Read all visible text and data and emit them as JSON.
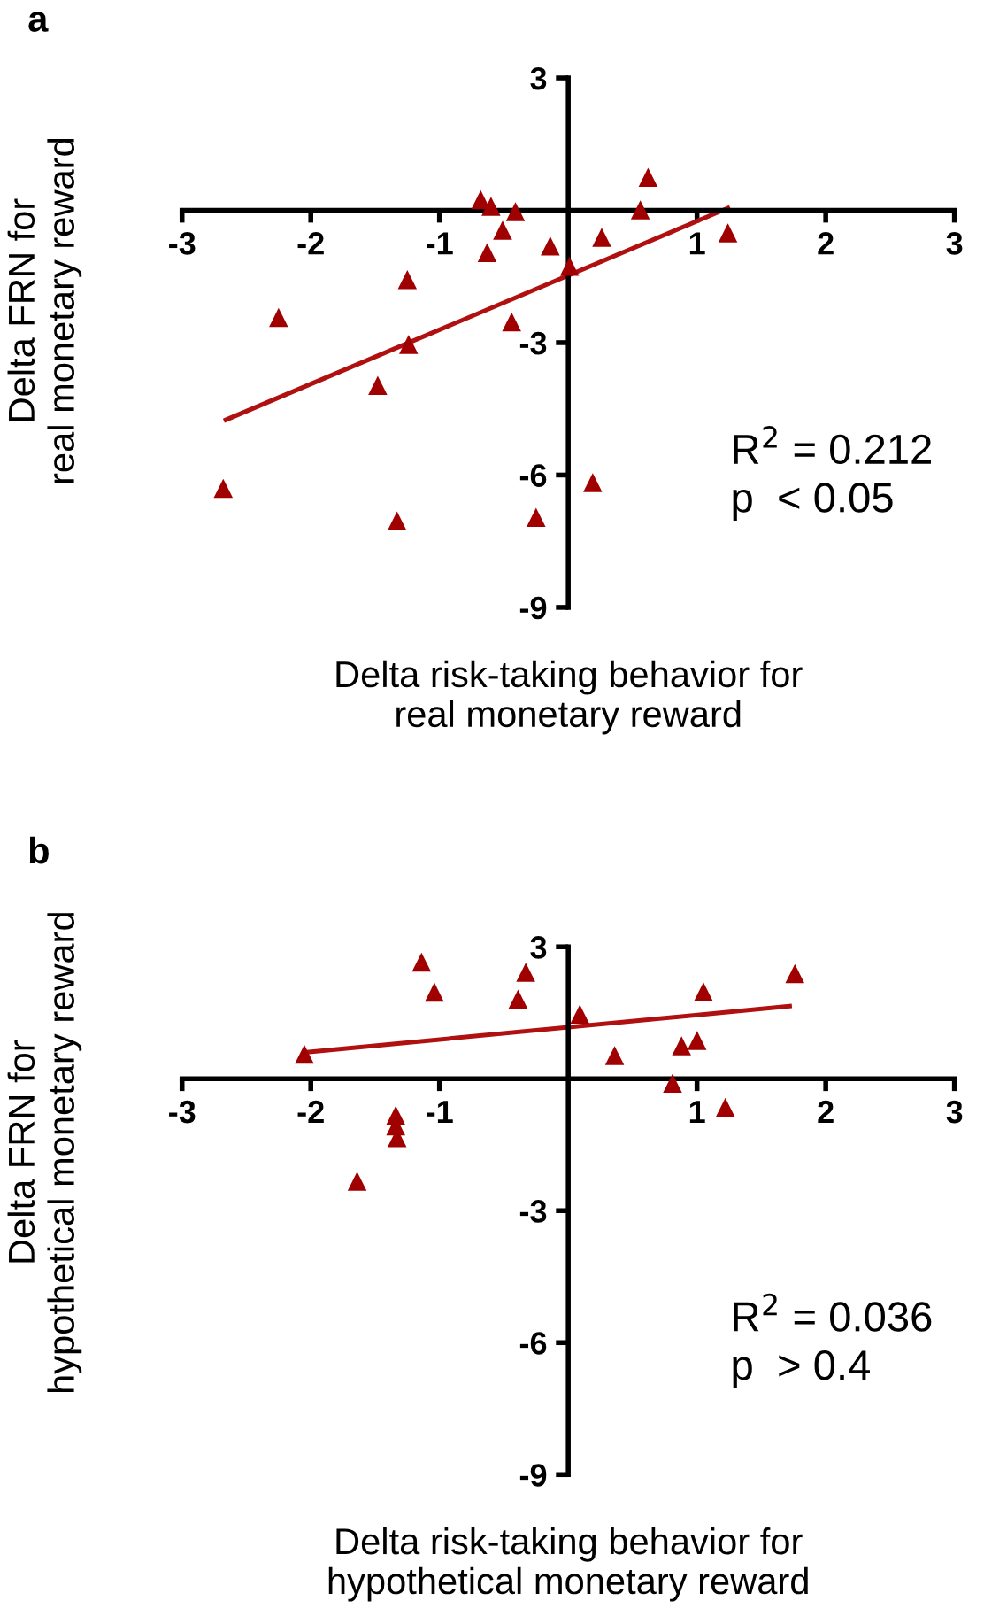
{
  "chart_data": [
    {
      "type": "scatter",
      "title": "a",
      "xlabel": "Delta risk-taking behavior for\nreal monetary reward",
      "ylabel": "Delta FRN for\nreal monetary reward",
      "annotations": [
        "R$^{2}$ = 0.212\np  < 0.05"
      ],
      "xlim": [
        -3,
        3
      ],
      "ylim": [
        -9,
        3
      ],
      "xticks": [
        -3,
        -2,
        -1,
        1,
        2,
        3
      ],
      "yticks": [
        3,
        -3,
        -6,
        -9
      ],
      "grid": false,
      "legend": false,
      "series": [
        {
          "color": "#a00000",
          "marker": "triangle",
          "x": [
            -2.68,
            -2.25,
            -1.48,
            -1.33,
            -1.25,
            -1.24,
            -0.68,
            -0.6,
            -0.63,
            -0.51,
            -0.41,
            -0.44,
            -0.25,
            -0.14,
            0.01,
            0.19,
            0.26,
            0.56,
            0.62,
            1.24
          ],
          "values": [
            -6.3,
            -2.43,
            -3.97,
            -7.04,
            -1.57,
            -3.04,
            0.24,
            0.09,
            -0.96,
            -0.45,
            -0.03,
            -2.53,
            -6.96,
            -0.81,
            -1.27,
            -6.17,
            -0.61,
            0.01,
            0.75,
            -0.51
          ]
        },
        {
          "type": "line",
          "color": "#b01010",
          "marker": "none",
          "line_style": "solid",
          "x": [
            -2.66,
            1.24
          ],
          "values": [
            -4.75,
            0.05
          ]
        }
      ]
    },
    {
      "type": "scatter",
      "title": "b",
      "xlabel": "Delta risk-taking behavior for\nhypothetical monetary reward",
      "ylabel": "Delta FRN for\nhypothetical monetary reward",
      "annotations": [
        "R$^{2}$ = 0.036\np  > 0.4"
      ],
      "xlim": [
        -3,
        3
      ],
      "ylim": [
        -9,
        3
      ],
      "xticks": [
        -3,
        -2,
        -1,
        1,
        2,
        3
      ],
      "yticks": [
        3,
        -3,
        -6,
        -9
      ],
      "grid": false,
      "legend": false,
      "series": [
        {
          "color": "#a00000",
          "marker": "triangle",
          "x": [
            -2.05,
            -1.14,
            -1.04,
            -1.34,
            -1.34,
            -1.33,
            -1.64,
            -0.39,
            -0.33,
            0.09,
            0.36,
            0.81,
            0.88,
            1.0,
            1.05,
            1.22,
            1.76
          ],
          "values": [
            0.56,
            2.65,
            1.97,
            -0.83,
            -1.07,
            -1.34,
            -2.33,
            1.81,
            2.42,
            1.47,
            0.53,
            -0.1,
            0.75,
            0.87,
            1.98,
            -0.65,
            2.39
          ]
        },
        {
          "type": "line",
          "color": "#b01010",
          "marker": "none",
          "line_style": "solid",
          "x": [
            -2.05,
            1.72
          ],
          "values": [
            0.6,
            1.65
          ]
        }
      ]
    }
  ]
}
